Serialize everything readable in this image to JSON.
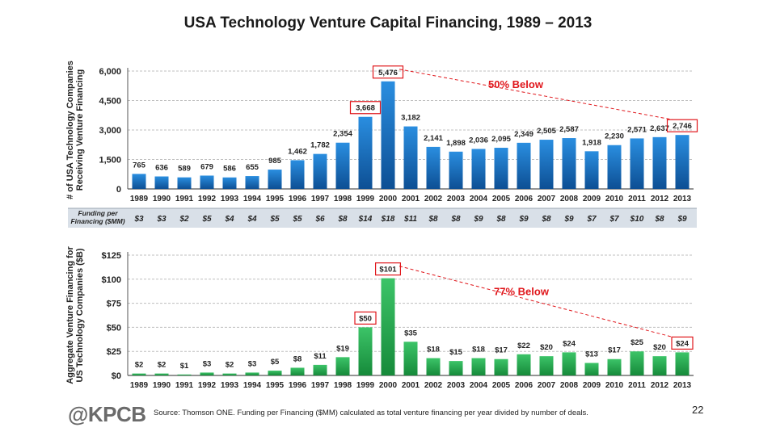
{
  "title": "USA Technology Venture Capital Financing, 1989 – 2013",
  "categories": [
    "1989",
    "1990",
    "1991",
    "1992",
    "1993",
    "1994",
    "1995",
    "1996",
    "1997",
    "1998",
    "1999",
    "2000",
    "2001",
    "2002",
    "2003",
    "2004",
    "2005",
    "2006",
    "2007",
    "2008",
    "2009",
    "2010",
    "2011",
    "2012",
    "2013"
  ],
  "chart_data": [
    {
      "type": "bar",
      "title": "",
      "ylabel": "# of USA Technology Companies Receiving Venture Financing",
      "ylim": [
        0,
        6000
      ],
      "yticks": [
        0,
        1500,
        3000,
        4500,
        6000
      ],
      "ytick_labels": [
        "0",
        "1,500",
        "3,000",
        "4,500",
        "6,000"
      ],
      "grid": true,
      "bar_color": "#1a73c2",
      "values": [
        765,
        636,
        589,
        679,
        586,
        655,
        985,
        1462,
        1782,
        2354,
        3668,
        5476,
        3182,
        2141,
        1898,
        2036,
        2095,
        2349,
        2505,
        2587,
        1918,
        2230,
        2571,
        2637,
        2746
      ],
      "labels": [
        "765",
        "636",
        "589",
        "679",
        "586",
        "655",
        "985",
        "1,462",
        "1,782",
        "2,354",
        "3,668",
        "5,476",
        "3,182",
        "2,141",
        "1,898",
        "2,036",
        "2,095",
        "2,349",
        "2,505",
        "2,587",
        "1,918",
        "2,230",
        "2,571",
        "2,637",
        "2,746"
      ],
      "boxed_indices": [
        10,
        11,
        24
      ],
      "annotation": "50% Below"
    },
    {
      "type": "table",
      "label": "Funding per Financing ($MM)",
      "values": [
        "$3",
        "$3",
        "$2",
        "$5",
        "$4",
        "$4",
        "$5",
        "$5",
        "$6",
        "$8",
        "$14",
        "$18",
        "$11",
        "$8",
        "$8",
        "$9",
        "$8",
        "$9",
        "$8",
        "$9",
        "$7",
        "$7",
        "$10",
        "$8",
        "$9"
      ]
    },
    {
      "type": "bar",
      "title": "",
      "ylabel": "Aggregate Venture Financing for US Technology Companies ($B)",
      "ylim": [
        0,
        125
      ],
      "yticks": [
        0,
        25,
        50,
        75,
        100,
        125
      ],
      "ytick_labels": [
        "$0",
        "$25",
        "$50",
        "$75",
        "$100",
        "$125"
      ],
      "grid": true,
      "bar_color": "#1ea84a",
      "values": [
        2,
        2,
        1,
        3,
        2,
        3,
        5,
        8,
        11,
        19,
        50,
        101,
        35,
        18,
        15,
        18,
        17,
        22,
        20,
        24,
        13,
        17,
        25,
        20,
        24
      ],
      "labels": [
        "$2",
        "$2",
        "$1",
        "$3",
        "$2",
        "$3",
        "$5",
        "$8",
        "$11",
        "$19",
        "$50",
        "$101",
        "$35",
        "$18",
        "$15",
        "$18",
        "$17",
        "$22",
        "$20",
        "$24",
        "$13",
        "$17",
        "$25",
        "$20",
        "$24"
      ],
      "boxed_indices": [
        10,
        11,
        24
      ],
      "annotation": "77% Below"
    }
  ],
  "footer": {
    "logo": "@KPCB",
    "source": "Source: Thomson ONE. Funding per Financing ($MM) calculated as total venture financing per year divided by number of deals.",
    "page": "22"
  },
  "colors": {
    "highlight": "#e0161b",
    "band": "#d9e0e8"
  }
}
